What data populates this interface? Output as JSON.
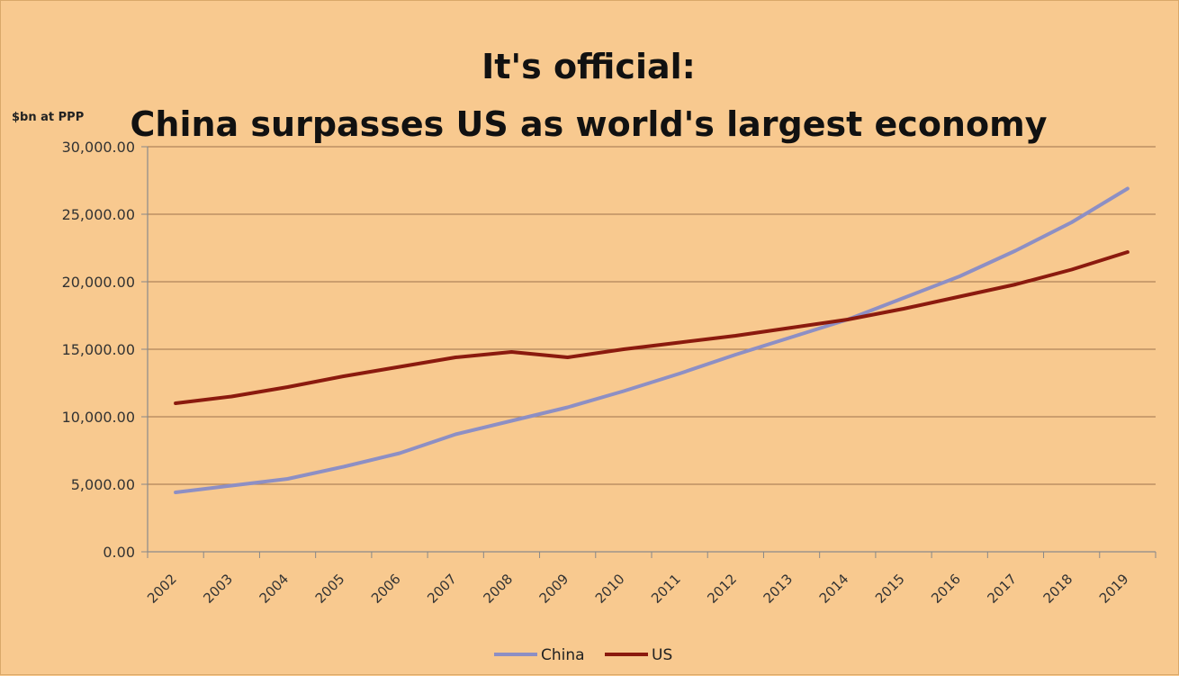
{
  "chart_data": {
    "type": "line",
    "title": "It's official:",
    "subtitle": "China surpasses US as world's largest economy",
    "ylabel": "$bn at PPP",
    "xlabel": "",
    "ylim": [
      0,
      30000
    ],
    "y_ticks": [
      "0.00",
      "5,000.00",
      "10,000.00",
      "15,000.00",
      "20,000.00",
      "25,000.00",
      "30,000.00"
    ],
    "y_tick_values": [
      0,
      5000,
      10000,
      15000,
      20000,
      25000,
      30000
    ],
    "categories": [
      "2002",
      "2003",
      "2004",
      "2005",
      "2006",
      "2007",
      "2008",
      "2009",
      "2010",
      "2011",
      "2012",
      "2013",
      "2014",
      "2015",
      "2016",
      "2017",
      "2018",
      "2019"
    ],
    "grid": true,
    "legend_position": "bottom",
    "series": [
      {
        "name": "China",
        "color": "#8d8fc4",
        "values": [
          4400,
          4900,
          5400,
          6300,
          7300,
          8700,
          9700,
          10700,
          11900,
          13200,
          14600,
          15900,
          17200,
          18800,
          20400,
          22300,
          24400,
          26900
        ]
      },
      {
        "name": "US",
        "color": "#8b1a0e",
        "values": [
          11000,
          11500,
          12200,
          13000,
          13700,
          14400,
          14800,
          14400,
          15000,
          15500,
          16000,
          16600,
          17200,
          18000,
          18900,
          19800,
          20900,
          22200
        ]
      }
    ]
  }
}
